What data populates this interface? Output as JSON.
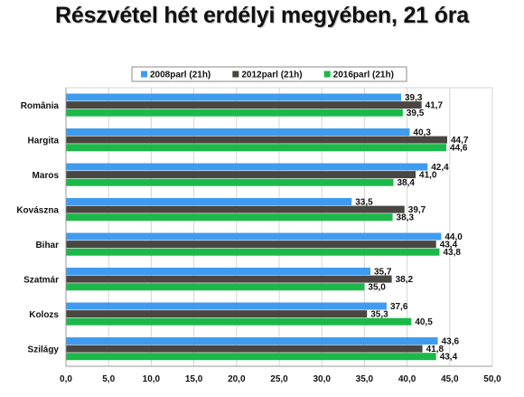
{
  "chart_data": {
    "type": "bar",
    "orientation": "horizontal",
    "title": "Részvétel hét erdélyi megyében, 21 óra",
    "categories": [
      "România",
      "Hargita",
      "Maros",
      "Kovászna",
      "Bihar",
      "Szatmár",
      "Kolozs",
      "Szilágy"
    ],
    "series": [
      {
        "name": "2008parl (21h)",
        "color": "#3f9bf0",
        "values": [
          39.3,
          40.3,
          42.4,
          33.5,
          44.0,
          35.7,
          37.6,
          43.6
        ],
        "labels": [
          "39,3",
          "40,3",
          "42,4",
          "33,5",
          "44,0",
          "35,7",
          "37,6",
          "43,6"
        ]
      },
      {
        "name": "2012parl (21h)",
        "color": "#4a4742",
        "values": [
          41.7,
          44.7,
          41.0,
          39.7,
          43.4,
          38.2,
          35.3,
          41.8
        ],
        "labels": [
          "41,7",
          "44,7",
          "41,0",
          "39,7",
          "43,4",
          "38,2",
          "35,3",
          "41,8"
        ]
      },
      {
        "name": "2016parl (21h)",
        "color": "#1cb84a",
        "values": [
          39.5,
          44.6,
          38.4,
          38.3,
          43.8,
          35.0,
          40.5,
          43.4
        ],
        "labels": [
          "39,5",
          "44,6",
          "38,4",
          "38,3",
          "43,8",
          "35,0",
          "40,5",
          "43,4"
        ]
      }
    ],
    "xlim": [
      0,
      50
    ],
    "xticks": [
      0,
      5,
      10,
      15,
      20,
      25,
      30,
      35,
      40,
      45,
      50
    ],
    "xtick_labels": [
      "0,0",
      "5,0",
      "10,0",
      "15,0",
      "20,0",
      "25,0",
      "30,0",
      "35,0",
      "40,0",
      "45,0",
      "50,0"
    ],
    "grid": true,
    "legend_position": "top"
  }
}
